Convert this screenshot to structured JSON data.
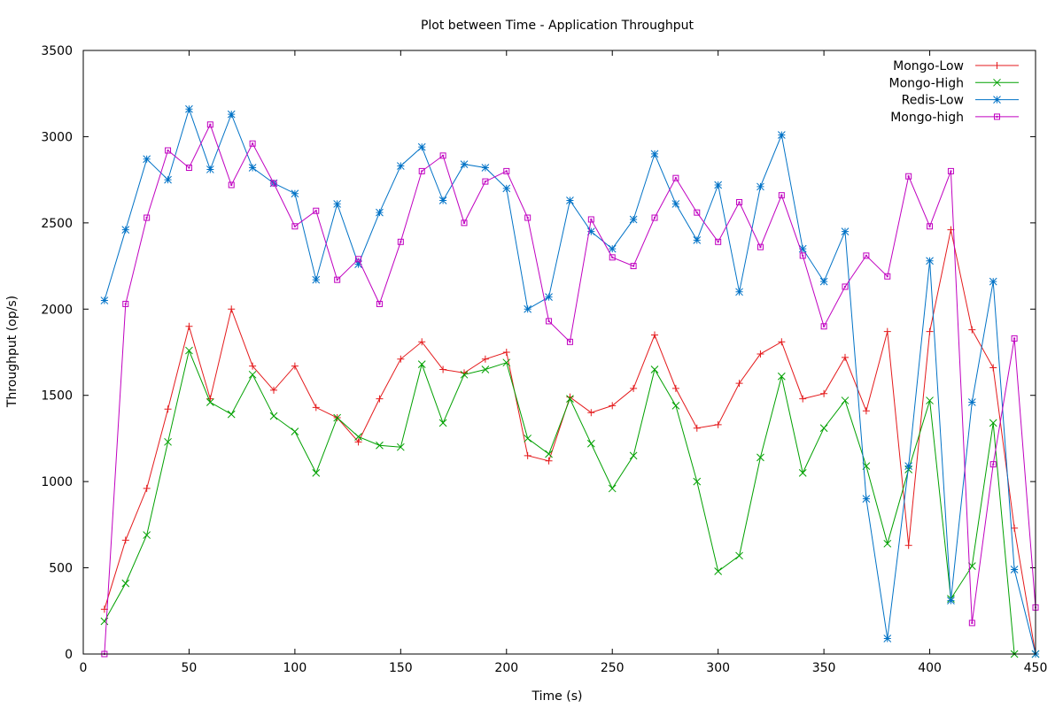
{
  "chart_data": {
    "type": "line",
    "title": "Plot between Time - Application Throughput",
    "xlabel": "Time (s)",
    "ylabel": "Throughput (op/s)",
    "xlim": [
      0,
      450
    ],
    "ylim": [
      0,
      3500
    ],
    "xticks": [
      0,
      50,
      100,
      150,
      200,
      250,
      300,
      350,
      400,
      450
    ],
    "yticks": [
      0,
      500,
      1000,
      1500,
      2000,
      2500,
      3000,
      3500
    ],
    "grid": false,
    "legend_position": "top-right",
    "x": [
      10,
      20,
      30,
      40,
      50,
      60,
      70,
      80,
      90,
      100,
      110,
      120,
      130,
      140,
      150,
      160,
      170,
      180,
      190,
      200,
      210,
      220,
      230,
      240,
      250,
      260,
      270,
      280,
      290,
      300,
      310,
      320,
      330,
      340,
      350,
      360,
      370,
      380,
      390,
      400,
      410,
      420,
      430,
      440,
      450
    ],
    "series": [
      {
        "name": "Mongo-Low",
        "color": "#e41a1c",
        "marker": "plus",
        "values": [
          260,
          660,
          960,
          1420,
          1900,
          1480,
          2000,
          1670,
          1530,
          1670,
          1430,
          1370,
          1230,
          1480,
          1710,
          1810,
          1650,
          1630,
          1710,
          1750,
          1150,
          1120,
          1490,
          1400,
          1440,
          1540,
          1850,
          1540,
          1310,
          1330,
          1570,
          1740,
          1810,
          1480,
          1510,
          1720,
          1410,
          1870,
          630,
          1870,
          2460,
          1880,
          1660,
          730,
          0
        ]
      },
      {
        "name": "Mongo-High",
        "color": "#00a000",
        "marker": "cross",
        "values": [
          190,
          410,
          690,
          1230,
          1760,
          1460,
          1390,
          1620,
          1380,
          1290,
          1050,
          1370,
          1260,
          1210,
          1200,
          1680,
          1340,
          1620,
          1650,
          1690,
          1250,
          1160,
          1480,
          1220,
          960,
          1150,
          1650,
          1440,
          1000,
          480,
          570,
          1140,
          1610,
          1050,
          1310,
          1470,
          1090,
          640,
          1070,
          1470,
          320,
          510,
          1340,
          0,
          0
        ]
      },
      {
        "name": "Redis-Low",
        "color": "#0072c6",
        "marker": "star",
        "values": [
          2050,
          2460,
          2870,
          2750,
          3160,
          2810,
          3130,
          2820,
          2730,
          2670,
          2170,
          2610,
          2260,
          2560,
          2830,
          2940,
          2630,
          2840,
          2820,
          2700,
          2000,
          2070,
          2630,
          2450,
          2350,
          2520,
          2900,
          2610,
          2400,
          2720,
          2100,
          2710,
          3010,
          2350,
          2160,
          2450,
          900,
          90,
          1090,
          2280,
          310,
          1460,
          2160,
          490,
          0
        ]
      },
      {
        "name": "Mongo-high",
        "color": "#c000c0",
        "marker": "square",
        "values": [
          0,
          2030,
          2530,
          2920,
          2820,
          3070,
          2720,
          2960,
          2730,
          2480,
          2570,
          2170,
          2290,
          2030,
          2390,
          2800,
          2890,
          2500,
          2740,
          2800,
          2530,
          1930,
          1810,
          2520,
          2300,
          2250,
          2530,
          2760,
          2560,
          2390,
          2620,
          2360,
          2660,
          2310,
          1900,
          2130,
          2310,
          2190,
          2770,
          2480,
          2800,
          180,
          1100,
          1830,
          270
        ]
      }
    ]
  }
}
